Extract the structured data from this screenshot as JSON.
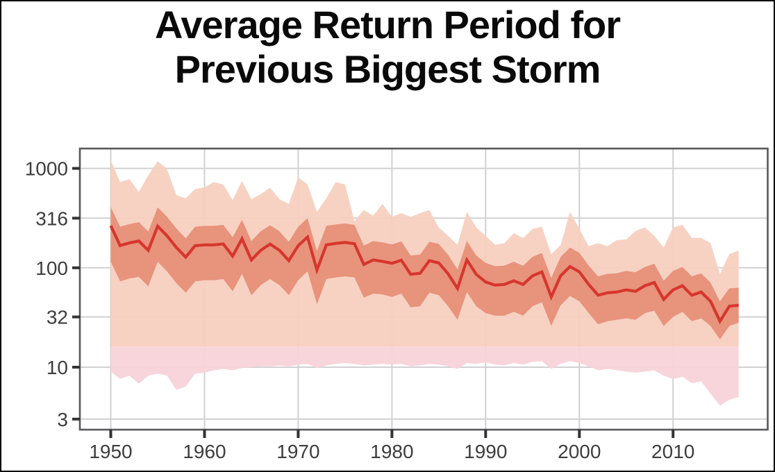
{
  "title": {
    "line1": "Average Return Period for",
    "line2": "Previous Biggest Storm"
  },
  "colors": {
    "median_line": "#d6362e",
    "inner_band": "#e8937c",
    "outer_band": "#f6cfbe",
    "lower_band": "#f8d3d9",
    "gridline": "#d1d1d1",
    "panel_border": "#58585a",
    "tick_mark": "#333333",
    "axis_text": "#3d3d3d",
    "title_text": "#0a0a0a",
    "frame": "#000000",
    "background": "#ffffff"
  },
  "chart_data": {
    "type": "line",
    "title": "Average Return Period for Previous Biggest Storm",
    "xlabel": "",
    "ylabel": "",
    "grid": true,
    "legend": null,
    "x_axis": {
      "ticks": [
        1950,
        1960,
        1970,
        1980,
        1990,
        2000,
        2010
      ],
      "labels": [
        "1950",
        "1960",
        "1970",
        "1980",
        "1990",
        "2000",
        "2010"
      ],
      "range": [
        1946.7,
        2020.1
      ]
    },
    "y_axis": {
      "scale": "log10",
      "ticks": [
        1000,
        316,
        100,
        32,
        10,
        3
      ],
      "labels": [
        "1000",
        "316",
        "100",
        "32",
        "10",
        "3"
      ],
      "range": [
        2.35,
        1585
      ]
    },
    "x": [
      1950,
      1951,
      1952,
      1953,
      1954,
      1955,
      1956,
      1957,
      1958,
      1959,
      1960,
      1961,
      1962,
      1963,
      1964,
      1965,
      1966,
      1967,
      1968,
      1969,
      1970,
      1971,
      1972,
      1973,
      1974,
      1975,
      1976,
      1977,
      1978,
      1979,
      1980,
      1981,
      1982,
      1983,
      1984,
      1985,
      1986,
      1987,
      1988,
      1989,
      1990,
      1991,
      1992,
      1993,
      1994,
      1995,
      1996,
      1997,
      1998,
      1999,
      2000,
      2001,
      2002,
      2003,
      2004,
      2005,
      2006,
      2007,
      2008,
      2009,
      2010,
      2011,
      2012,
      2013,
      2014,
      2015,
      2016,
      2017
    ],
    "median": [
      265,
      167,
      178,
      186,
      150,
      262,
      210,
      160,
      128,
      167,
      170,
      170,
      174,
      131,
      196,
      120,
      150,
      173,
      150,
      118,
      167,
      204,
      95,
      170,
      176,
      180,
      175,
      108,
      120,
      116,
      111,
      119,
      86,
      88,
      118,
      112,
      87,
      62,
      120,
      86,
      72,
      67,
      68,
      74,
      68,
      83,
      91,
      51,
      83,
      103,
      91,
      68,
      53,
      56,
      57,
      60,
      58,
      66,
      71,
      48,
      60,
      66,
      53,
      57,
      46,
      29,
      41,
      42
    ],
    "bands": {
      "inner": {
        "hi": [
          410,
          258,
          276,
          288,
          232,
          406,
          326,
          248,
          198,
          259,
          264,
          264,
          270,
          203,
          304,
          186,
          233,
          268,
          233,
          183,
          259,
          316,
          147,
          264,
          273,
          279,
          271,
          167,
          186,
          180,
          172,
          184,
          133,
          136,
          183,
          174,
          135,
          96,
          186,
          133,
          112,
          104,
          105,
          115,
          105,
          129,
          141,
          79,
          129,
          160,
          141,
          105,
          82,
          87,
          88,
          93,
          90,
          102,
          110,
          74,
          93,
          102,
          82,
          88,
          71,
          46,
          62,
          63
        ],
        "lo": [
          115,
          73,
          78,
          81,
          65,
          115,
          92,
          70,
          56,
          73,
          75,
          75,
          77,
          58,
          87,
          53,
          67,
          77,
          67,
          53,
          75,
          92,
          43,
          77,
          80,
          82,
          80,
          50,
          55,
          54,
          51,
          55,
          40,
          41,
          56,
          53,
          41,
          30,
          57,
          41,
          35,
          33,
          33,
          36,
          33,
          41,
          45,
          26,
          42,
          52,
          46,
          35,
          27,
          29,
          30,
          31,
          30,
          35,
          37,
          26,
          32,
          36,
          29,
          31,
          26,
          19,
          26,
          28
        ]
      },
      "outer": {
        "hi": [
          1200,
          730,
          780,
          580,
          855,
          1180,
          990,
          540,
          500,
          620,
          645,
          730,
          690,
          480,
          750,
          490,
          550,
          640,
          490,
          440,
          815,
          690,
          365,
          500,
          730,
          690,
          295,
          380,
          335,
          440,
          325,
          355,
          325,
          355,
          380,
          255,
          210,
          170,
          365,
          255,
          210,
          170,
          177,
          223,
          199,
          246,
          260,
          137,
          170,
          365,
          246,
          165,
          177,
          165,
          190,
          193,
          235,
          255,
          210,
          160,
          255,
          270,
          200,
          200,
          177,
          87,
          137,
          150
        ],
        "lo_constant": 16
      },
      "below": {
        "hi_constant": 16,
        "lo": [
          9.0,
          7.6,
          8.2,
          6.8,
          8.2,
          8.6,
          8.2,
          5.9,
          6.4,
          8.6,
          8.8,
          9.3,
          9.6,
          9.3,
          9.8,
          10.0,
          10.2,
          10.2,
          10.4,
          10.2,
          10.6,
          10.8,
          9.8,
          10.4,
          10.8,
          11.0,
          10.8,
          10.4,
          10.6,
          10.8,
          10.6,
          10.8,
          10.2,
          10.4,
          10.8,
          10.6,
          10.2,
          9.6,
          11.0,
          10.8,
          11.2,
          10.6,
          10.4,
          11.0,
          10.6,
          11.3,
          11.5,
          9.6,
          10.8,
          11.5,
          11.0,
          10.2,
          9.3,
          9.6,
          9.3,
          9.0,
          8.8,
          9.0,
          9.3,
          8.2,
          7.6,
          8.0,
          6.9,
          7.2,
          5.4,
          4.1,
          4.7,
          5.0
        ]
      }
    }
  }
}
